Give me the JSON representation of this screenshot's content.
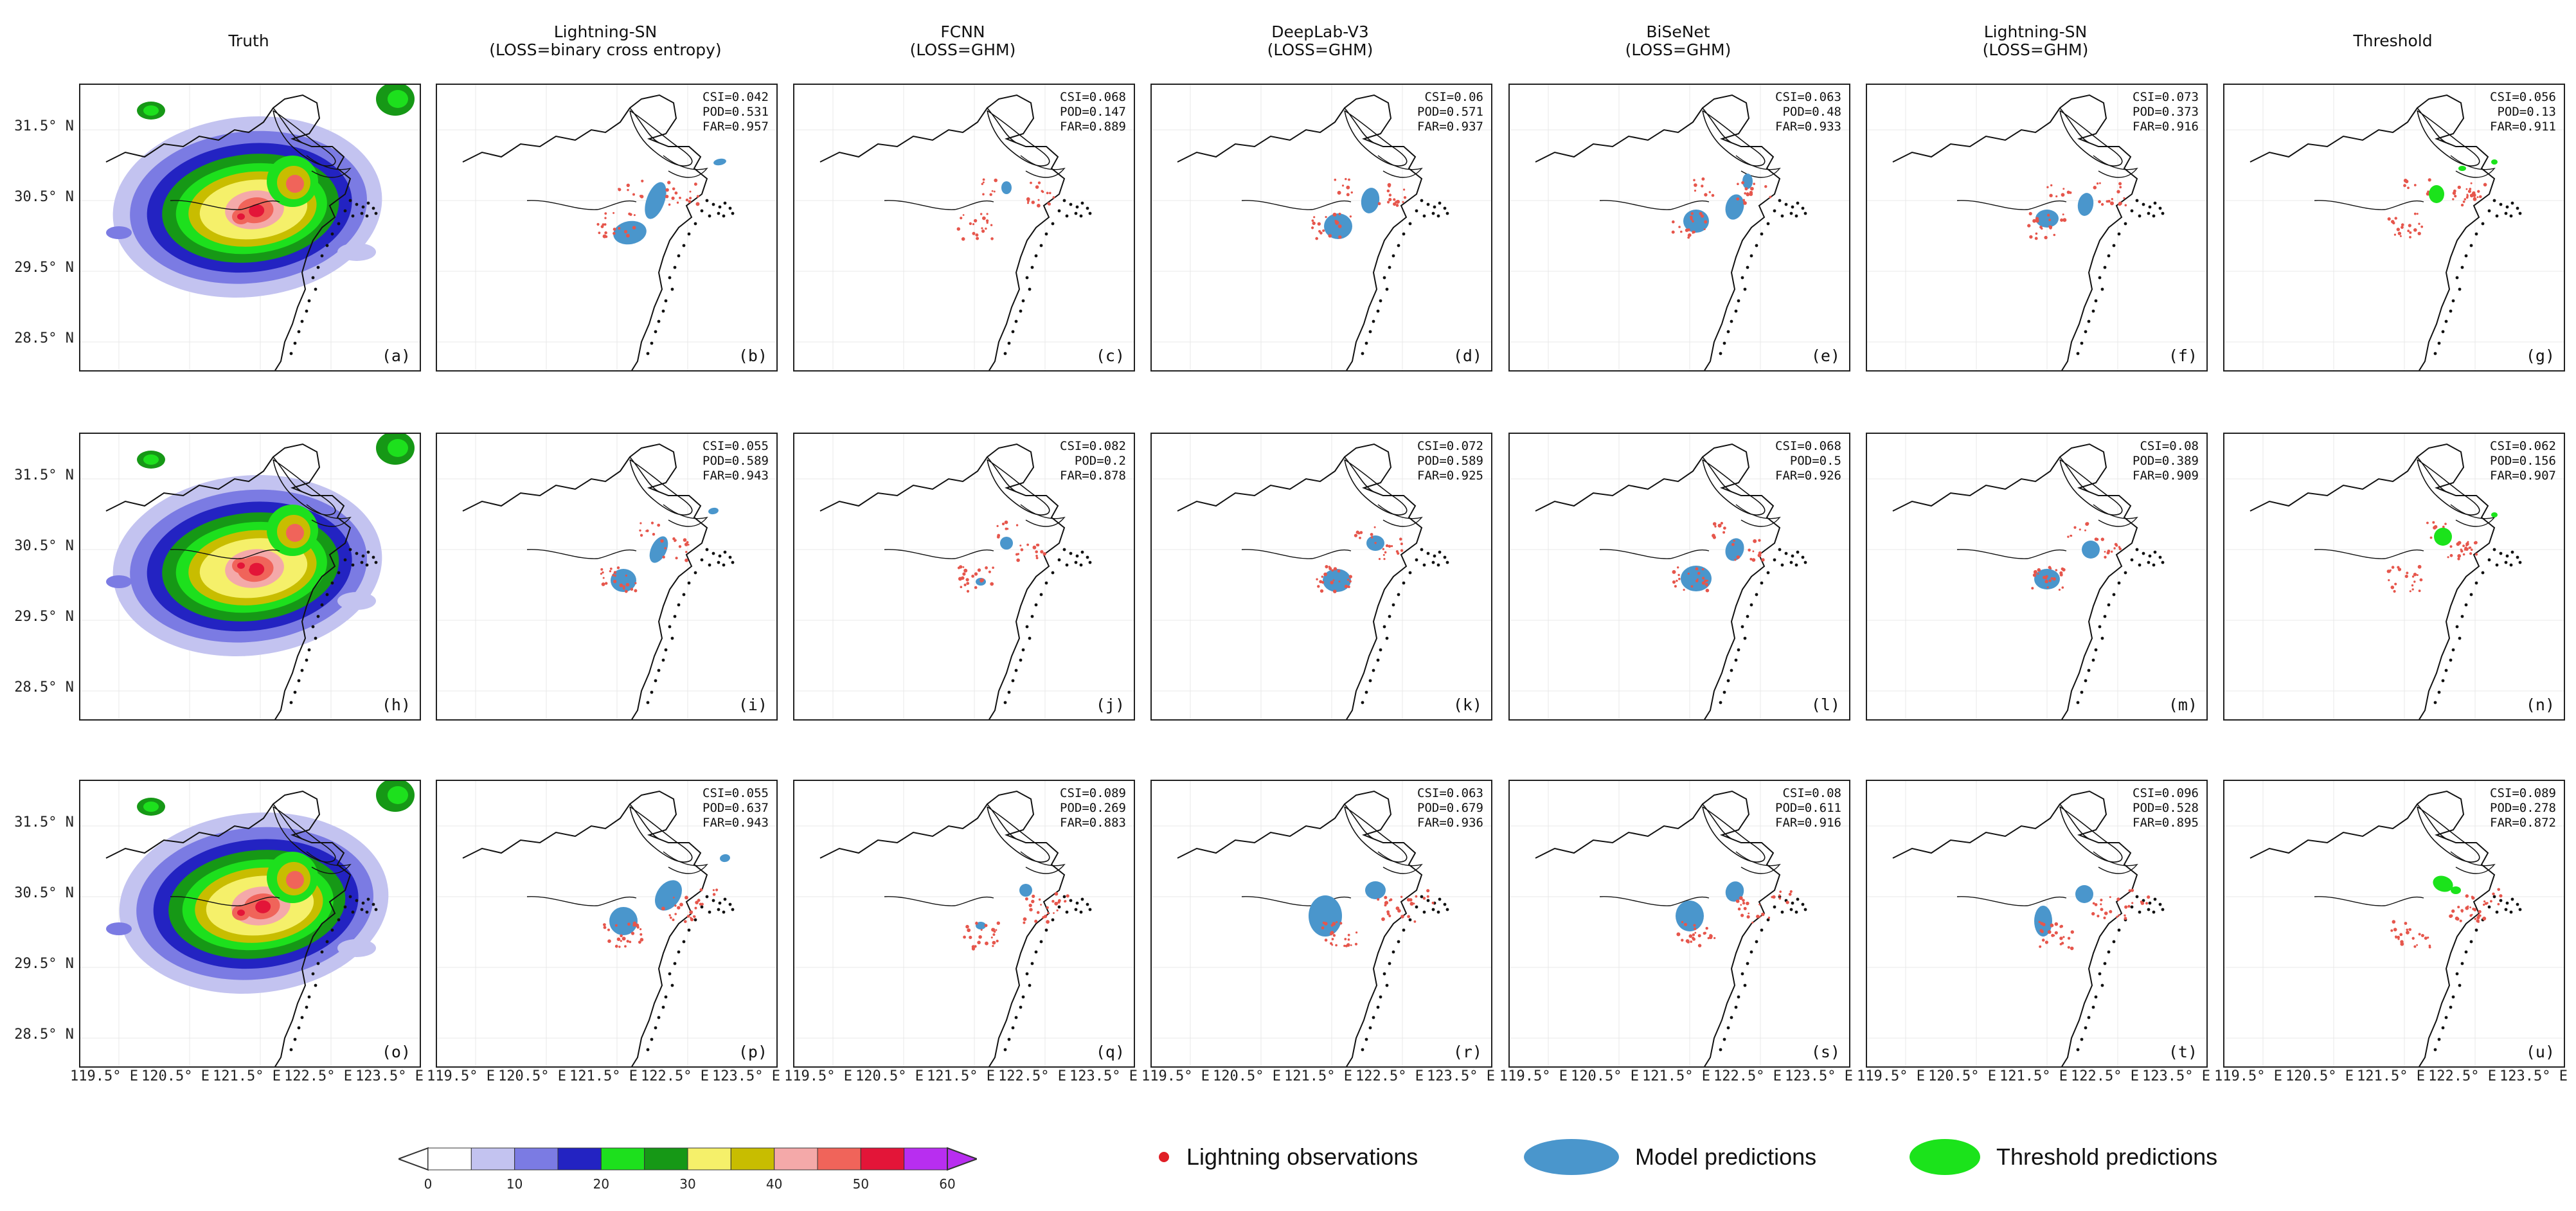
{
  "columns": [
    {
      "title": "Truth",
      "subtitle": ""
    },
    {
      "title": "Lightning-SN",
      "subtitle": "(LOSS=binary cross entropy)"
    },
    {
      "title": "FCNN",
      "subtitle": "(LOSS=GHM)"
    },
    {
      "title": "DeepLab-V3",
      "subtitle": "(LOSS=GHM)"
    },
    {
      "title": "BiSeNet",
      "subtitle": "(LOSS=GHM)"
    },
    {
      "title": "Lightning-SN",
      "subtitle": "(LOSS=GHM)"
    },
    {
      "title": "Threshold",
      "subtitle": ""
    }
  ],
  "rows": [
    {
      "labels": [
        "(a)",
        "(b)",
        "(c)",
        "(d)",
        "(e)",
        "(f)",
        "(g)"
      ],
      "stats": [
        null,
        {
          "csi": "CSI=0.042",
          "pod": "POD=0.531",
          "far": "FAR=0.957"
        },
        {
          "csi": "CSI=0.068",
          "pod": "POD=0.147",
          "far": "FAR=0.889"
        },
        {
          "csi": "CSI=0.06",
          "pod": "POD=0.571",
          "far": "FAR=0.937"
        },
        {
          "csi": "CSI=0.063",
          "pod": "POD=0.48",
          "far": "FAR=0.933"
        },
        {
          "csi": "CSI=0.073",
          "pod": "POD=0.373",
          "far": "FAR=0.916"
        },
        {
          "csi": "CSI=0.056",
          "pod": "POD=0.13",
          "far": "FAR=0.911"
        }
      ]
    },
    {
      "labels": [
        "(h)",
        "(i)",
        "(j)",
        "(k)",
        "(l)",
        "(m)",
        "(n)"
      ],
      "stats": [
        null,
        {
          "csi": "CSI=0.055",
          "pod": "POD=0.589",
          "far": "FAR=0.943"
        },
        {
          "csi": "CSI=0.082",
          "pod": "POD=0.2",
          "far": "FAR=0.878"
        },
        {
          "csi": "CSI=0.072",
          "pod": "POD=0.589",
          "far": "FAR=0.925"
        },
        {
          "csi": "CSI=0.068",
          "pod": "POD=0.5",
          "far": "FAR=0.926"
        },
        {
          "csi": "CSI=0.08",
          "pod": "POD=0.389",
          "far": "FAR=0.909"
        },
        {
          "csi": "CSI=0.062",
          "pod": "POD=0.156",
          "far": "FAR=0.907"
        }
      ]
    },
    {
      "labels": [
        "(o)",
        "(p)",
        "(q)",
        "(r)",
        "(s)",
        "(t)",
        "(u)"
      ],
      "stats": [
        null,
        {
          "csi": "CSI=0.055",
          "pod": "POD=0.637",
          "far": "FAR=0.943"
        },
        {
          "csi": "CSI=0.089",
          "pod": "POD=0.269",
          "far": "FAR=0.883"
        },
        {
          "csi": "CSI=0.063",
          "pod": "POD=0.679",
          "far": "FAR=0.936"
        },
        {
          "csi": "CSI=0.08",
          "pod": "POD=0.611",
          "far": "FAR=0.916"
        },
        {
          "csi": "CSI=0.096",
          "pod": "POD=0.528",
          "far": "FAR=0.895"
        },
        {
          "csi": "CSI=0.089",
          "pod": "POD=0.278",
          "far": "FAR=0.872"
        }
      ]
    }
  ],
  "y_ticks": [
    "31.5° N",
    "30.5° N",
    "29.5° N",
    "28.5° N"
  ],
  "x_ticks": [
    "119.5° E",
    "120.5° E",
    "121.5° E",
    "122.5° E",
    "123.5° E"
  ],
  "colorbar": {
    "ticks": [
      "0",
      "10",
      "20",
      "30",
      "40",
      "50",
      "60"
    ],
    "colors": [
      "#ffffff",
      "#c3c3f0",
      "#7b7be3",
      "#2323c2",
      "#1de01d",
      "#169816",
      "#f5f06a",
      "#c8bd00",
      "#f4a9a9",
      "#f0645a",
      "#e31538",
      "#b82ef0"
    ]
  },
  "legend": [
    {
      "label": "Lightning observations",
      "symbol": "red-dot",
      "color": "#e01f26"
    },
    {
      "label": "Model predictions",
      "symbol": "blue-ellipse",
      "color": "#4a96cc"
    },
    {
      "label": "Threshold predictions",
      "symbol": "green-ellipse",
      "color": "#1be31b"
    }
  ]
}
